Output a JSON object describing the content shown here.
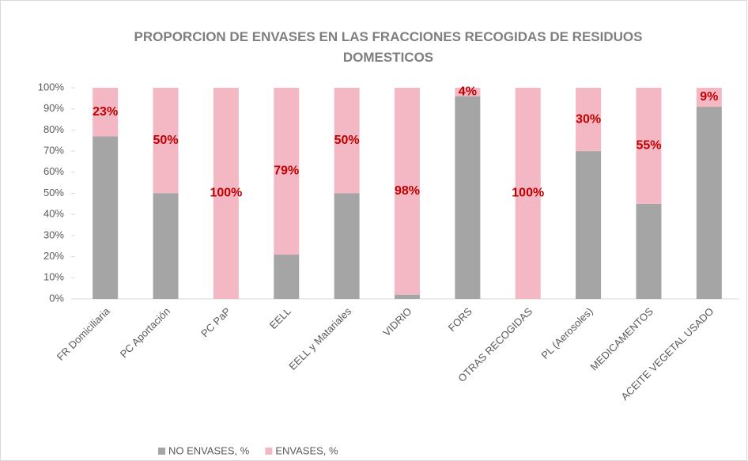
{
  "chart_data": {
    "type": "stacked_bar",
    "title": "PROPORCION DE ENVASES EN LAS FRACCIONES RECOGIDAS DE RESIDUOS DOMESTICOS",
    "categories": [
      "FR Domiciliaria",
      "PC Aportación",
      "PC PaP",
      "EELL",
      "EELL y Matariales",
      "VIDRIO",
      "FORS",
      "OTRAS RECOGIDAS",
      "PL (Aerosoles)",
      "MEDICAMENTOS",
      "ACEITE VEGETAL USADO"
    ],
    "series": [
      {
        "name": "NO ENVASES, %",
        "color": "#a5a5a5",
        "values": [
          77,
          50,
          0,
          21,
          50,
          2,
          96,
          0,
          70,
          45,
          91
        ]
      },
      {
        "name": "ENVASES, %",
        "color": "#f4b8c4",
        "values": [
          23,
          50,
          100,
          79,
          50,
          98,
          4,
          100,
          30,
          55,
          9
        ],
        "value_labels": [
          "23%",
          "50%",
          "100%",
          "79%",
          "50%",
          "98%",
          "4%",
          "100%",
          "30%",
          "55%",
          "9%"
        ]
      }
    ],
    "ylim": [
      0,
      100
    ],
    "yticks": [
      {
        "value": 0,
        "label": "0%"
      },
      {
        "value": 10,
        "label": "10%"
      },
      {
        "value": 20,
        "label": "20%"
      },
      {
        "value": 30,
        "label": "30%"
      },
      {
        "value": 40,
        "label": "40%"
      },
      {
        "value": 50,
        "label": "50%"
      },
      {
        "value": 60,
        "label": "60%"
      },
      {
        "value": 70,
        "label": "70%"
      },
      {
        "value": 80,
        "label": "80%"
      },
      {
        "value": 90,
        "label": "90%"
      },
      {
        "value": 100,
        "label": "100%"
      }
    ],
    "legend": "bottom"
  }
}
